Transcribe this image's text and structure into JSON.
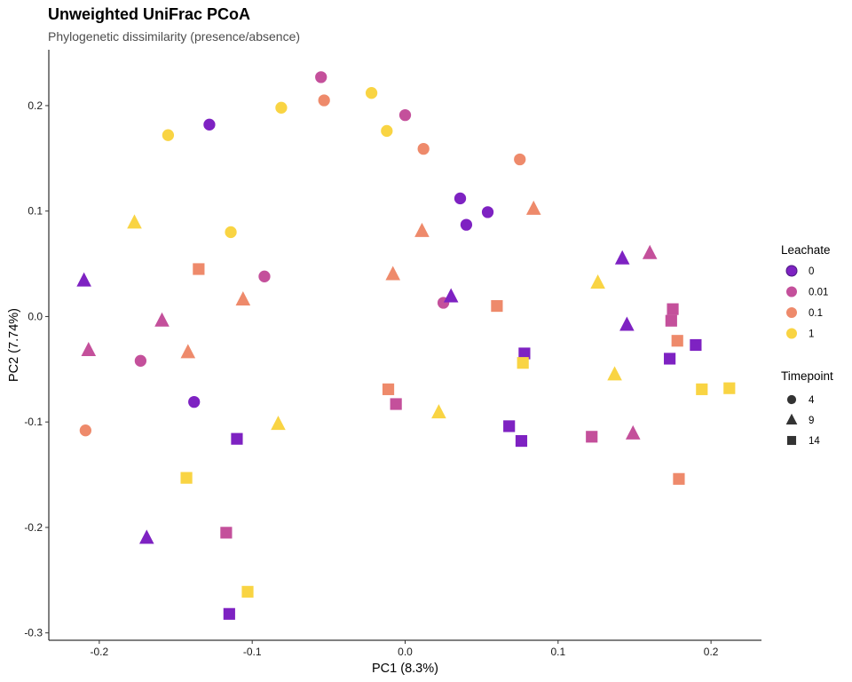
{
  "chart_data": {
    "type": "scatter",
    "title": "Unweighted UniFrac PCoA",
    "subtitle": "Phylogenetic dissimilarity (presence/absence)",
    "xlabel": "PC1 (8.3%)",
    "ylabel": "PC2 (7.74%)",
    "xlim": [
      -0.233,
      0.233
    ],
    "ylim": [
      -0.307,
      0.253
    ],
    "x_ticks": [
      -0.2,
      -0.1,
      0.0,
      0.1,
      0.2
    ],
    "x_tick_labels": [
      "-0.2",
      "-0.1",
      "0.0",
      "0.1",
      "0.2"
    ],
    "y_ticks": [
      -0.3,
      -0.2,
      -0.1,
      0.0,
      0.1,
      0.2
    ],
    "y_tick_labels": [
      "-0.3",
      "-0.2",
      "-0.1",
      "0.0",
      "0.1",
      "0.2"
    ],
    "grid": false,
    "legend_placement": "right",
    "color_legend": {
      "title": "Leachate",
      "entries": [
        {
          "label": "0",
          "color": "#7e22c2"
        },
        {
          "label": "0.01",
          "color": "#c4509b"
        },
        {
          "label": "0.1",
          "color": "#ee8a6b"
        },
        {
          "label": "1",
          "color": "#f9d443"
        }
      ]
    },
    "shape_legend": {
      "title": "Timepoint",
      "entries": [
        {
          "label": "4",
          "shape": "circle"
        },
        {
          "label": "9",
          "shape": "triangle"
        },
        {
          "label": "14",
          "shape": "square"
        }
      ]
    },
    "points": [
      {
        "x": -0.128,
        "y": 0.182,
        "leachate": "0",
        "timepoint": "4"
      },
      {
        "x": 0.036,
        "y": 0.112,
        "leachate": "0",
        "timepoint": "4"
      },
      {
        "x": 0.054,
        "y": 0.099,
        "leachate": "0",
        "timepoint": "4"
      },
      {
        "x": 0.04,
        "y": 0.087,
        "leachate": "0",
        "timepoint": "4"
      },
      {
        "x": -0.138,
        "y": -0.081,
        "leachate": "0",
        "timepoint": "4"
      },
      {
        "x": -0.055,
        "y": 0.227,
        "leachate": "0.01",
        "timepoint": "4"
      },
      {
        "x": 0.0,
        "y": 0.191,
        "leachate": "0.01",
        "timepoint": "4"
      },
      {
        "x": -0.092,
        "y": 0.038,
        "leachate": "0.01",
        "timepoint": "4"
      },
      {
        "x": 0.025,
        "y": 0.013,
        "leachate": "0.01",
        "timepoint": "4"
      },
      {
        "x": -0.173,
        "y": -0.042,
        "leachate": "0.01",
        "timepoint": "4"
      },
      {
        "x": -0.053,
        "y": 0.205,
        "leachate": "0.1",
        "timepoint": "4"
      },
      {
        "x": 0.012,
        "y": 0.159,
        "leachate": "0.1",
        "timepoint": "4"
      },
      {
        "x": 0.075,
        "y": 0.149,
        "leachate": "0.1",
        "timepoint": "4"
      },
      {
        "x": -0.209,
        "y": -0.108,
        "leachate": "0.1",
        "timepoint": "4"
      },
      {
        "x": -0.155,
        "y": 0.172,
        "leachate": "1",
        "timepoint": "4"
      },
      {
        "x": -0.081,
        "y": 0.198,
        "leachate": "1",
        "timepoint": "4"
      },
      {
        "x": -0.022,
        "y": 0.212,
        "leachate": "1",
        "timepoint": "4"
      },
      {
        "x": -0.012,
        "y": 0.176,
        "leachate": "1",
        "timepoint": "4"
      },
      {
        "x": -0.114,
        "y": 0.08,
        "leachate": "1",
        "timepoint": "4"
      },
      {
        "x": -0.21,
        "y": 0.034,
        "leachate": "0",
        "timepoint": "9"
      },
      {
        "x": 0.03,
        "y": 0.019,
        "leachate": "0",
        "timepoint": "9"
      },
      {
        "x": 0.142,
        "y": 0.055,
        "leachate": "0",
        "timepoint": "9"
      },
      {
        "x": 0.145,
        "y": -0.008,
        "leachate": "0",
        "timepoint": "9"
      },
      {
        "x": -0.169,
        "y": -0.21,
        "leachate": "0",
        "timepoint": "9"
      },
      {
        "x": 0.16,
        "y": 0.06,
        "leachate": "0.01",
        "timepoint": "9"
      },
      {
        "x": -0.159,
        "y": -0.004,
        "leachate": "0.01",
        "timepoint": "9"
      },
      {
        "x": -0.207,
        "y": -0.032,
        "leachate": "0.01",
        "timepoint": "9"
      },
      {
        "x": 0.149,
        "y": -0.111,
        "leachate": "0.01",
        "timepoint": "9"
      },
      {
        "x": 0.084,
        "y": 0.102,
        "leachate": "0.1",
        "timepoint": "9"
      },
      {
        "x": 0.011,
        "y": 0.081,
        "leachate": "0.1",
        "timepoint": "9"
      },
      {
        "x": -0.008,
        "y": 0.04,
        "leachate": "0.1",
        "timepoint": "9"
      },
      {
        "x": -0.106,
        "y": 0.016,
        "leachate": "0.1",
        "timepoint": "9"
      },
      {
        "x": -0.142,
        "y": -0.034,
        "leachate": "0.1",
        "timepoint": "9"
      },
      {
        "x": -0.177,
        "y": 0.089,
        "leachate": "1",
        "timepoint": "9"
      },
      {
        "x": 0.126,
        "y": 0.032,
        "leachate": "1",
        "timepoint": "9"
      },
      {
        "x": 0.137,
        "y": -0.055,
        "leachate": "1",
        "timepoint": "9"
      },
      {
        "x": 0.022,
        "y": -0.091,
        "leachate": "1",
        "timepoint": "9"
      },
      {
        "x": -0.083,
        "y": -0.102,
        "leachate": "1",
        "timepoint": "9"
      },
      {
        "x": 0.078,
        "y": -0.035,
        "leachate": "0",
        "timepoint": "14"
      },
      {
        "x": 0.068,
        "y": -0.104,
        "leachate": "0",
        "timepoint": "14"
      },
      {
        "x": 0.076,
        "y": -0.118,
        "leachate": "0",
        "timepoint": "14"
      },
      {
        "x": -0.11,
        "y": -0.116,
        "leachate": "0",
        "timepoint": "14"
      },
      {
        "x": 0.19,
        "y": -0.027,
        "leachate": "0",
        "timepoint": "14"
      },
      {
        "x": 0.173,
        "y": -0.04,
        "leachate": "0",
        "timepoint": "14"
      },
      {
        "x": -0.115,
        "y": -0.282,
        "leachate": "0",
        "timepoint": "14"
      },
      {
        "x": 0.175,
        "y": 0.007,
        "leachate": "0.01",
        "timepoint": "14"
      },
      {
        "x": 0.174,
        "y": -0.004,
        "leachate": "0.01",
        "timepoint": "14"
      },
      {
        "x": -0.006,
        "y": -0.083,
        "leachate": "0.01",
        "timepoint": "14"
      },
      {
        "x": 0.122,
        "y": -0.114,
        "leachate": "0.01",
        "timepoint": "14"
      },
      {
        "x": -0.117,
        "y": -0.205,
        "leachate": "0.01",
        "timepoint": "14"
      },
      {
        "x": -0.135,
        "y": 0.045,
        "leachate": "0.1",
        "timepoint": "14"
      },
      {
        "x": 0.06,
        "y": 0.01,
        "leachate": "0.1",
        "timepoint": "14"
      },
      {
        "x": -0.011,
        "y": -0.069,
        "leachate": "0.1",
        "timepoint": "14"
      },
      {
        "x": 0.178,
        "y": -0.023,
        "leachate": "0.1",
        "timepoint": "14"
      },
      {
        "x": 0.179,
        "y": -0.154,
        "leachate": "0.1",
        "timepoint": "14"
      },
      {
        "x": 0.077,
        "y": -0.044,
        "leachate": "1",
        "timepoint": "14"
      },
      {
        "x": 0.194,
        "y": -0.069,
        "leachate": "1",
        "timepoint": "14"
      },
      {
        "x": 0.212,
        "y": -0.068,
        "leachate": "1",
        "timepoint": "14"
      },
      {
        "x": -0.143,
        "y": -0.153,
        "leachate": "1",
        "timepoint": "14"
      },
      {
        "x": -0.103,
        "y": -0.261,
        "leachate": "1",
        "timepoint": "14"
      }
    ]
  }
}
